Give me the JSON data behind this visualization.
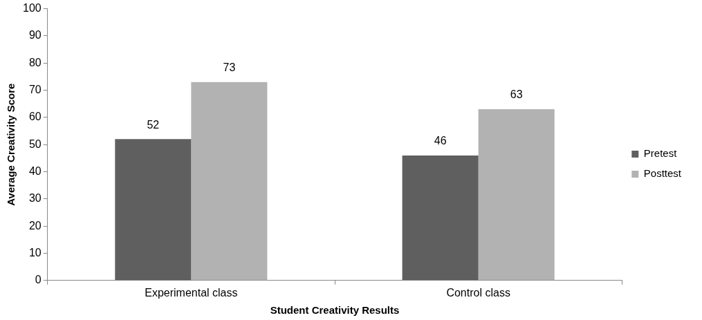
{
  "chart_data": {
    "type": "bar",
    "xlabel": "Student Creativity Results",
    "ylabel": "Average Creativity Score",
    "categories": [
      "Experimental class",
      "Control class"
    ],
    "series": [
      {
        "name": "Pretest",
        "color": "#5f5f5f",
        "values": [
          52,
          46
        ]
      },
      {
        "name": "Posttest",
        "color": "#b2b2b2",
        "values": [
          73,
          63
        ]
      }
    ],
    "ylim": [
      0,
      100
    ],
    "yticks": [
      0,
      10,
      20,
      30,
      40,
      50,
      60,
      70,
      80,
      90,
      100
    ],
    "legend": "right",
    "data_labels": true
  }
}
